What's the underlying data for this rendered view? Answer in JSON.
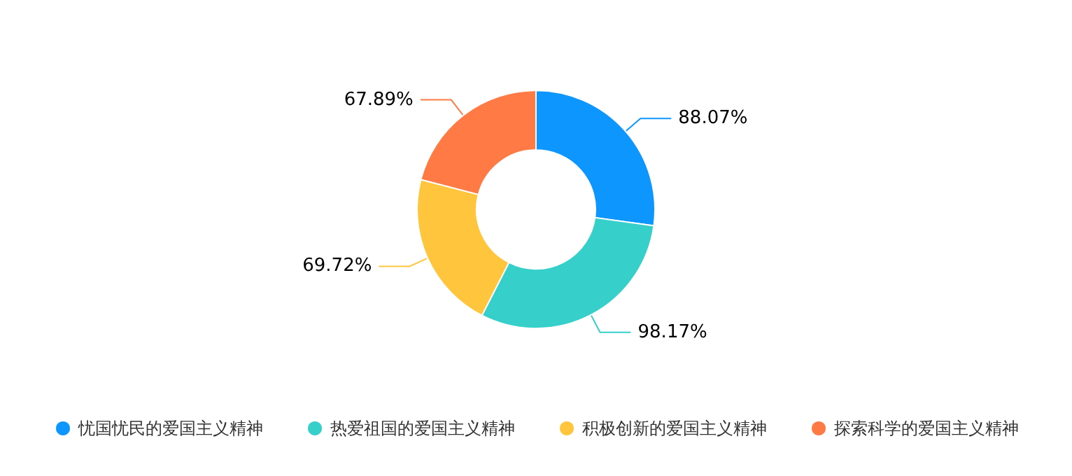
{
  "chart_data": {
    "type": "donut",
    "categories": [
      "忧国忧民的爱国主义精神",
      "热爱祖国的爱国主义精神",
      "积极创新的爱国主义精神",
      "探索科学的爱国主义精神"
    ],
    "values": [
      88.07,
      98.17,
      69.72,
      67.89
    ],
    "colors": [
      "#0e96ff",
      "#36cfca",
      "#ffc53d",
      "#ff7a45"
    ],
    "value_labels": [
      "88.07%",
      "98.17%",
      "69.72%",
      "67.89%"
    ],
    "legend": "bottom"
  }
}
